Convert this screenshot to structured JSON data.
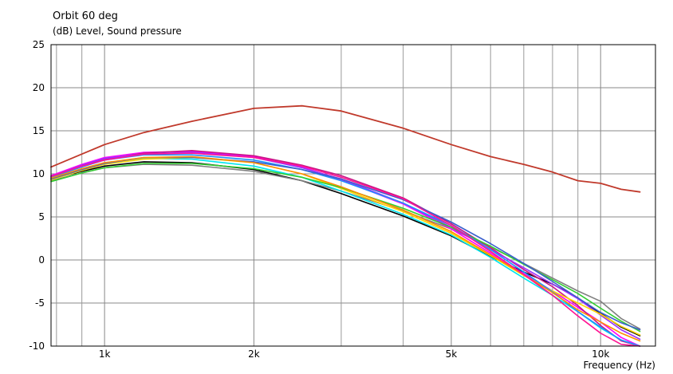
{
  "chart_data": {
    "type": "line",
    "title": "Orbit 60 deg",
    "ylabel": "(dB)  Level, Sound pressure",
    "xlabel": "Frequency  (Hz)",
    "xscale": "log",
    "xlim": [
      780,
      12900
    ],
    "ylim": [
      -10,
      25
    ],
    "grid": true,
    "yticks": [
      {
        "value": 25,
        "label": "25"
      },
      {
        "value": 20,
        "label": "20"
      },
      {
        "value": 15,
        "label": "15"
      },
      {
        "value": 10,
        "label": "10"
      },
      {
        "value": 5,
        "label": "5"
      },
      {
        "value": 0,
        "label": "0"
      },
      {
        "value": -5,
        "label": "-5"
      },
      {
        "value": -10,
        "label": "-10"
      }
    ],
    "xticks": [
      {
        "value": 1000,
        "label": "1k"
      },
      {
        "value": 2000,
        "label": "2k"
      },
      {
        "value": 5000,
        "label": "5k"
      },
      {
        "value": 10000,
        "label": "10k"
      }
    ],
    "minor_x": [
      800,
      900,
      3000,
      4000,
      6000,
      7000,
      8000,
      9000
    ],
    "x": [
      780,
      900,
      1000,
      1200,
      1500,
      2000,
      2500,
      3000,
      4000,
      5000,
      6000,
      7000,
      8000,
      9000,
      10000,
      11000,
      12000
    ],
    "series": [
      {
        "color": "#c0392b",
        "values": [
          10.8,
          12.3,
          13.4,
          14.8,
          16.1,
          17.6,
          17.9,
          17.3,
          15.3,
          13.4,
          12.0,
          11.1,
          10.2,
          9.2,
          8.9,
          8.2,
          7.9
        ]
      },
      {
        "color": "#000000",
        "values": [
          9.4,
          10.3,
          10.9,
          11.4,
          11.3,
          10.5,
          9.2,
          7.7,
          5.1,
          2.8,
          0.4,
          -1.4,
          -2.8,
          -4.4,
          -6.2,
          -7.8,
          -8.8
        ]
      },
      {
        "color": "#808080",
        "values": [
          9.2,
          10.1,
          10.7,
          11.1,
          11.0,
          10.3,
          9.2,
          8.0,
          5.7,
          3.6,
          1.5,
          -0.4,
          -2.1,
          -3.6,
          -4.8,
          -6.8,
          -8.0
        ]
      },
      {
        "color": "#ff00ff",
        "values": [
          9.8,
          11.1,
          11.9,
          12.5,
          12.6,
          12.0,
          10.8,
          9.3,
          6.5,
          3.6,
          0.8,
          -1.6,
          -3.6,
          -5.5,
          -7.2,
          -9.0,
          -10.0
        ]
      },
      {
        "color": "#c71585",
        "values": [
          9.6,
          10.9,
          11.7,
          12.4,
          12.7,
          12.1,
          11.0,
          9.8,
          7.2,
          4.2,
          1.4,
          -1.1,
          -3.1,
          -5.3,
          -7.6,
          -9.4,
          -10.0
        ]
      },
      {
        "color": "#9b30ff",
        "values": [
          9.7,
          11.0,
          11.8,
          12.3,
          12.5,
          11.9,
          10.7,
          9.4,
          6.6,
          3.8,
          1.2,
          -0.9,
          -2.8,
          -4.5,
          -6.4,
          -8.1,
          -9.2
        ]
      },
      {
        "color": "#00e5ee",
        "values": [
          9.5,
          10.6,
          11.3,
          11.8,
          11.7,
          10.9,
          9.6,
          8.0,
          5.3,
          2.9,
          0.3,
          -2.1,
          -4.1,
          -6.0,
          -7.9,
          -9.3,
          -10.0
        ]
      },
      {
        "color": "#ffd700",
        "values": [
          9.3,
          10.4,
          11.1,
          11.7,
          11.9,
          11.3,
          10.0,
          8.3,
          5.6,
          3.1,
          0.5,
          -1.8,
          -3.6,
          -5.0,
          -6.3,
          -7.7,
          -8.7
        ]
      },
      {
        "color": "#32cd32",
        "values": [
          9.1,
          10.1,
          10.7,
          11.2,
          11.2,
          10.6,
          9.6,
          8.4,
          6.0,
          3.8,
          1.6,
          -0.5,
          -2.3,
          -3.9,
          -5.6,
          -7.1,
          -8.3
        ]
      },
      {
        "color": "#1e90ff",
        "values": [
          9.6,
          10.8,
          11.6,
          12.2,
          12.2,
          11.6,
          10.5,
          9.2,
          6.6,
          4.0,
          1.2,
          -1.4,
          -3.7,
          -6.0,
          -7.8,
          -9.3,
          -10.0
        ]
      },
      {
        "color": "#3a5fcd",
        "values": [
          9.4,
          10.5,
          11.2,
          11.9,
          11.9,
          11.4,
          10.5,
          9.4,
          7.0,
          4.4,
          1.9,
          -0.4,
          -2.5,
          -4.4,
          -6.1,
          -7.3,
          -8.1
        ]
      },
      {
        "color": "#ff8c00",
        "values": [
          9.5,
          10.6,
          11.3,
          11.9,
          12.0,
          11.3,
          10.0,
          8.5,
          5.8,
          3.3,
          0.6,
          -1.7,
          -3.8,
          -5.8,
          -7.2,
          -8.5,
          -9.4
        ]
      },
      {
        "color": "#ff1493",
        "values": [
          9.7,
          10.9,
          11.6,
          12.3,
          12.4,
          11.9,
          10.9,
          9.6,
          7.1,
          4.0,
          1.0,
          -1.7,
          -4.1,
          -6.5,
          -8.5,
          -9.8,
          -10.0
        ]
      }
    ]
  }
}
